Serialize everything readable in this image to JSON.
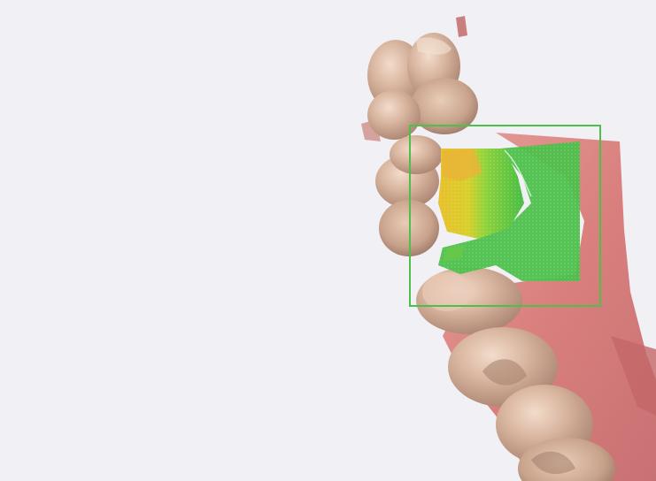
{
  "viewer": {
    "background_color": "#f1f0f5",
    "model_icon": "dental-arch-3d-model",
    "scan_region": {
      "frame_color": "#4cc04a",
      "heatmap_colors": [
        "#e7c51e",
        "#9fd23c",
        "#4cc04a",
        "#2fb33f"
      ]
    },
    "tissue_colors": {
      "teeth": "#d9b6a0",
      "gingiva": "#d87a78"
    }
  }
}
